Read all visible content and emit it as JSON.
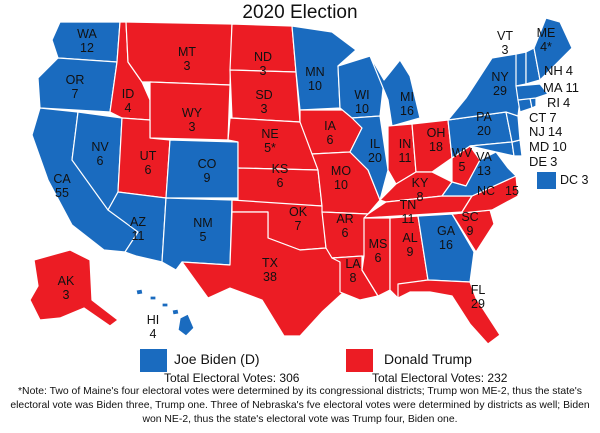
{
  "title": "2020 Election",
  "colors": {
    "dem": "#1a6bbf",
    "rep": "#ec1c24"
  },
  "states": [
    {
      "id": "WA",
      "party": "dem",
      "label": "WA",
      "votes": "12"
    },
    {
      "id": "OR",
      "party": "dem",
      "label": "OR",
      "votes": "7"
    },
    {
      "id": "CA",
      "party": "dem",
      "label": "CA",
      "votes": "55"
    },
    {
      "id": "NV",
      "party": "dem",
      "label": "NV",
      "votes": "6"
    },
    {
      "id": "ID",
      "party": "rep",
      "label": "ID",
      "votes": "4"
    },
    {
      "id": "MT",
      "party": "rep",
      "label": "MT",
      "votes": "3"
    },
    {
      "id": "WY",
      "party": "rep",
      "label": "WY",
      "votes": "3"
    },
    {
      "id": "UT",
      "party": "rep",
      "label": "UT",
      "votes": "6"
    },
    {
      "id": "AZ",
      "party": "dem",
      "label": "AZ",
      "votes": "11"
    },
    {
      "id": "CO",
      "party": "dem",
      "label": "CO",
      "votes": "9"
    },
    {
      "id": "NM",
      "party": "dem",
      "label": "NM",
      "votes": "5"
    },
    {
      "id": "ND",
      "party": "rep",
      "label": "ND",
      "votes": "3"
    },
    {
      "id": "SD",
      "party": "rep",
      "label": "SD",
      "votes": "3"
    },
    {
      "id": "NE",
      "party": "rep",
      "label": "NE",
      "votes": "5*"
    },
    {
      "id": "KS",
      "party": "rep",
      "label": "KS",
      "votes": "6"
    },
    {
      "id": "OK",
      "party": "rep",
      "label": "OK",
      "votes": "7"
    },
    {
      "id": "TX",
      "party": "rep",
      "label": "TX",
      "votes": "38"
    },
    {
      "id": "MN",
      "party": "dem",
      "label": "MN",
      "votes": "10"
    },
    {
      "id": "IA",
      "party": "rep",
      "label": "IA",
      "votes": "6"
    },
    {
      "id": "MO",
      "party": "rep",
      "label": "MO",
      "votes": "10"
    },
    {
      "id": "AR",
      "party": "rep",
      "label": "AR",
      "votes": "6"
    },
    {
      "id": "LA",
      "party": "rep",
      "label": "LA",
      "votes": "8"
    },
    {
      "id": "WI",
      "party": "dem",
      "label": "WI",
      "votes": "10"
    },
    {
      "id": "IL",
      "party": "dem",
      "label": "IL",
      "votes": "20"
    },
    {
      "id": "MI",
      "party": "dem",
      "label": "MI",
      "votes": "16"
    },
    {
      "id": "IN",
      "party": "rep",
      "label": "IN",
      "votes": "11"
    },
    {
      "id": "OH",
      "party": "rep",
      "label": "OH",
      "votes": "18"
    },
    {
      "id": "KY",
      "party": "rep",
      "label": "KY",
      "votes": "8"
    },
    {
      "id": "TN",
      "party": "rep",
      "label": "TN",
      "votes": "11"
    },
    {
      "id": "MS",
      "party": "rep",
      "label": "MS",
      "votes": "6"
    },
    {
      "id": "AL",
      "party": "rep",
      "label": "AL",
      "votes": "9"
    },
    {
      "id": "GA",
      "party": "dem",
      "label": "GA",
      "votes": "16"
    },
    {
      "id": "FL",
      "party": "rep",
      "label": "FL",
      "votes": "29"
    },
    {
      "id": "SC",
      "party": "rep",
      "label": "SC",
      "votes": "9"
    },
    {
      "id": "NC",
      "party": "rep",
      "label": "NC",
      "votes": "15"
    },
    {
      "id": "VA",
      "party": "dem",
      "label": "VA",
      "votes": "13"
    },
    {
      "id": "WV",
      "party": "rep",
      "label": "WV",
      "votes": "5"
    },
    {
      "id": "PA",
      "party": "dem",
      "label": "PA",
      "votes": "20"
    },
    {
      "id": "NY",
      "party": "dem",
      "label": "NY",
      "votes": "29"
    },
    {
      "id": "VT",
      "party": "dem",
      "label": "VT",
      "votes": "3"
    },
    {
      "id": "NH",
      "party": "dem",
      "label": "NH",
      "votes": "4"
    },
    {
      "id": "ME",
      "party": "dem",
      "label": "ME",
      "votes": "4*"
    },
    {
      "id": "MA",
      "party": "dem",
      "label": "MA",
      "votes": "11"
    },
    {
      "id": "RI",
      "party": "dem",
      "label": "RI",
      "votes": "4"
    },
    {
      "id": "CT",
      "party": "dem",
      "label": "CT",
      "votes": "7"
    },
    {
      "id": "NJ",
      "party": "dem",
      "label": "NJ",
      "votes": "14"
    },
    {
      "id": "MD",
      "party": "dem",
      "label": "MD",
      "votes": "10"
    },
    {
      "id": "DE",
      "party": "dem",
      "label": "DE",
      "votes": "3"
    },
    {
      "id": "AK",
      "party": "rep",
      "label": "AK",
      "votes": "3"
    },
    {
      "id": "HI",
      "party": "dem",
      "label": "HI",
      "votes": "4"
    }
  ],
  "dc": {
    "label": "DC",
    "votes": "3",
    "party": "dem"
  },
  "legend": {
    "dem": {
      "name": "Joe Biden (D)",
      "total": "Total Electoral Votes: 306"
    },
    "rep": {
      "name": "Donald Trump",
      "total": "Total Electoral Votes: 232"
    }
  },
  "footnote": "*Note: Two of Maine's four electoral votes were determined by its congressional districts;  Trump won ME-2, thus the state's electoral vote was Biden three, Trump one. Three of Nebraska's fve electoral votes were determined by districts as well; Biden won NE-2, thus the state's electoral vote was Trump four, Biden one."
}
